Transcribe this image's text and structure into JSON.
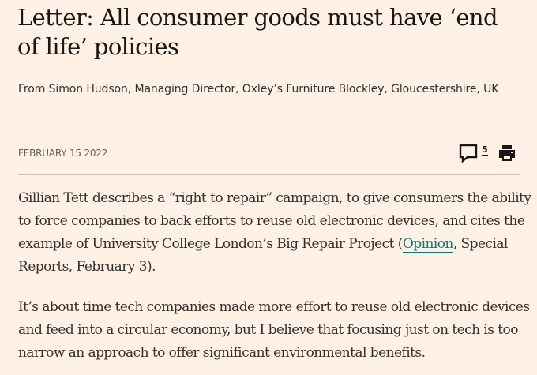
{
  "article": {
    "headline": "Letter: All consumer goods must have ‘end of life’ policies",
    "standfirst": "From Simon Hudson, Managing Director, Oxley’s Furniture Blockley, Gloucestershire, UK",
    "date": "FEBRUARY 15 2022"
  },
  "toolbar": {
    "comment_count": "5",
    "comment_icon": "speech-bubble-icon",
    "print_icon": "printer-icon"
  },
  "body": {
    "p1_before_link": "Gillian Tett describes a “right to repair” campaign, to give consumers the ability to force companies to back efforts to reuse old electronic devices, and cites the example of University College London’s Big Repair Project (",
    "p1_link": "Opinion",
    "p1_after_link": ", Special Reports, February 3).",
    "p2": "It’s about time tech companies made more effort to reuse old electronic devices and feed into a circular economy, but I believe that focusing just on tech is too narrow an approach to offer significant environmental benefits."
  },
  "colors": {
    "background": "#fff1e5",
    "link": "#0d7680",
    "text": "#33302e"
  }
}
